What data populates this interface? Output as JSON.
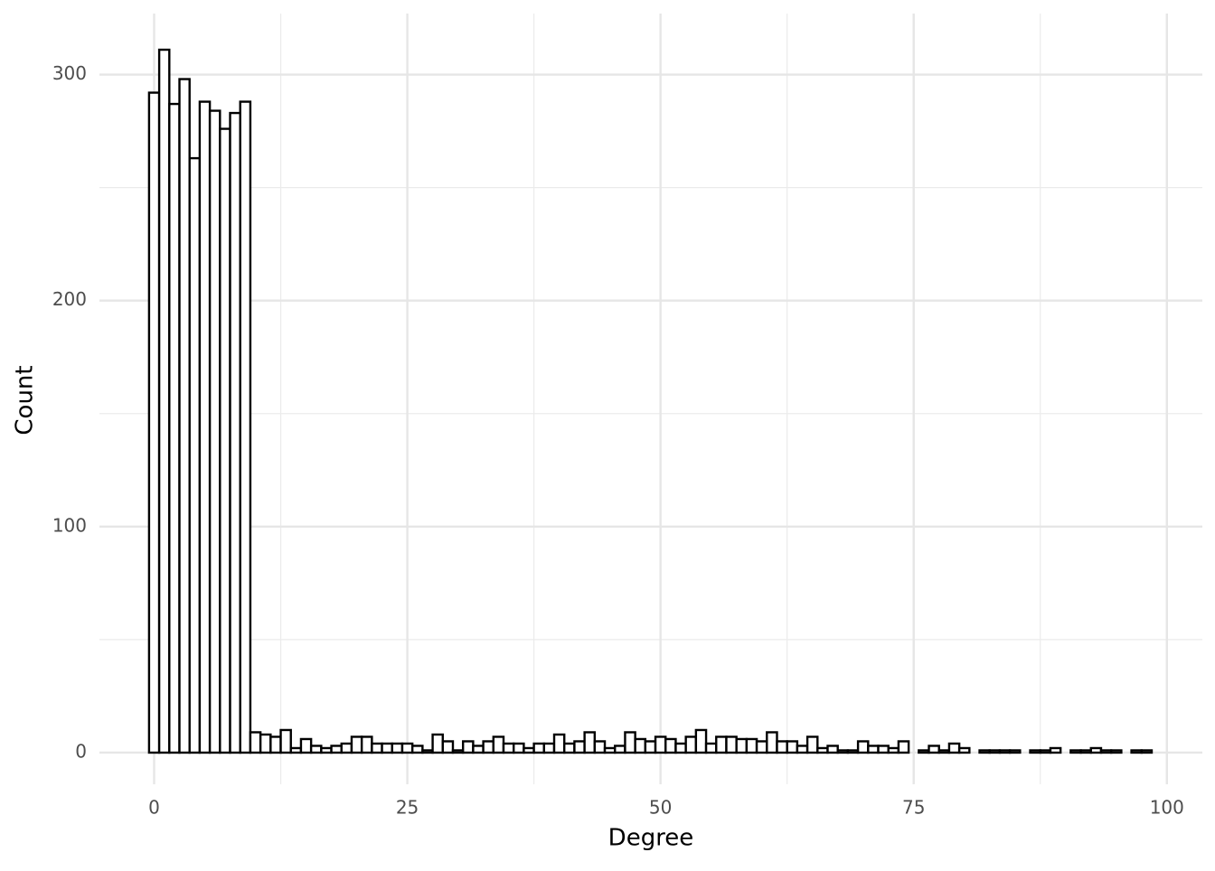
{
  "chart_data": {
    "type": "histogram",
    "x_label": "Degree",
    "y_label": "Count",
    "bins": [
      -0.5,
      0.5,
      1.5,
      2.5,
      3.5,
      4.5,
      5.5,
      6.5,
      7.5,
      8.5,
      9.5,
      10.5,
      11.5,
      12.5,
      13.5,
      14.5,
      15.5,
      16.5,
      17.5,
      18.5,
      19.5,
      20.5,
      21.5,
      22.5,
      23.5,
      24.5,
      25.5,
      26.5,
      27.5,
      28.5,
      29.5,
      30.5,
      31.5,
      32.5,
      33.5,
      34.5,
      35.5,
      36.5,
      37.5,
      38.5,
      39.5,
      40.5,
      41.5,
      42.5,
      43.5,
      44.5,
      45.5,
      46.5,
      47.5,
      48.5,
      49.5,
      50.5,
      51.5,
      52.5,
      53.5,
      54.5,
      55.5,
      56.5,
      57.5,
      58.5,
      59.5,
      60.5,
      61.5,
      62.5,
      63.5,
      64.5,
      65.5,
      66.5,
      67.5,
      68.5,
      69.5,
      70.5,
      71.5,
      72.5,
      73.5,
      74.5,
      75.5,
      76.5,
      77.5,
      78.5,
      79.5,
      80.5,
      81.5,
      82.5,
      83.5,
      84.5,
      85.5,
      86.5,
      87.5,
      88.5,
      89.5,
      90.5,
      91.5,
      92.5,
      93.5,
      94.5,
      95.5,
      96.5,
      97.5,
      98.5
    ],
    "values": [
      292,
      311,
      287,
      298,
      263,
      288,
      284,
      276,
      283,
      288,
      9,
      8,
      7,
      10,
      2,
      6,
      3,
      2,
      3,
      4,
      7,
      7,
      4,
      4,
      4,
      4,
      3,
      1,
      8,
      5,
      1,
      5,
      3,
      5,
      7,
      4,
      4,
      2,
      4,
      4,
      8,
      4,
      5,
      9,
      5,
      2,
      3,
      9,
      6,
      5,
      7,
      6,
      4,
      7,
      10,
      4,
      7,
      7,
      6,
      6,
      5,
      9,
      5,
      5,
      3,
      7,
      2,
      3,
      1,
      1,
      5,
      3,
      3,
      2,
      5,
      0,
      1,
      3,
      1,
      4,
      2,
      0,
      1,
      1,
      1,
      1,
      0,
      1,
      1,
      2,
      0,
      1,
      1,
      2,
      1,
      1,
      0,
      1,
      1
    ],
    "color": "#ffffff",
    "edge_color": "#000000",
    "xlim": [
      -5.4,
      103.5
    ],
    "ylim": [
      -14,
      327
    ],
    "xticks": [
      0,
      25,
      50,
      75,
      100
    ],
    "yticks": [
      0,
      100,
      200,
      300
    ],
    "grid": true
  }
}
